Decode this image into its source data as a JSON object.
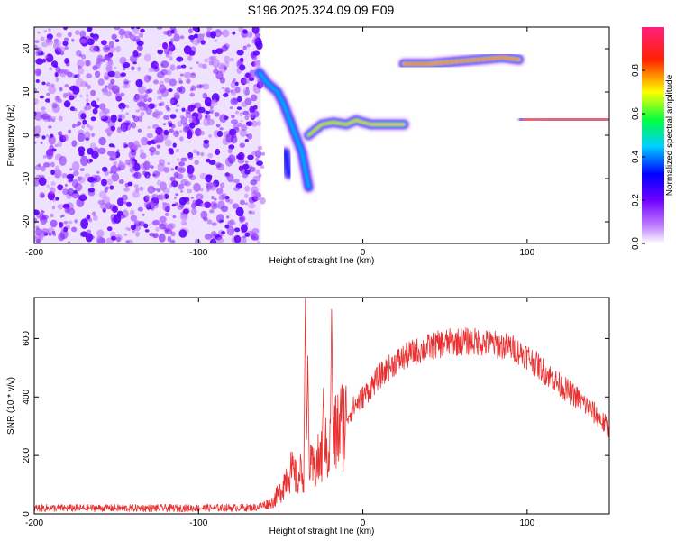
{
  "title": "S196.2025.324.09.09.E09",
  "colors": {
    "snr_line": "#e83030",
    "axes": "#000000",
    "background": "#ffffff"
  },
  "chart_data": [
    {
      "type": "heatmap",
      "name": "spectrogram",
      "xlabel": "Height of straight line (km)",
      "ylabel": "Frequency (Hz)",
      "xlim": [
        -200,
        150
      ],
      "ylim": [
        -25,
        25
      ],
      "xticks": [
        -200,
        -100,
        0,
        100
      ],
      "yticks": [
        -20,
        -10,
        0,
        10,
        20
      ],
      "colorbar": {
        "label": "Normalized spectral amplitude",
        "range": [
          0,
          1
        ],
        "ticks": [
          "0.0",
          "0.2",
          "0.4",
          "0.6",
          "0.8"
        ],
        "colormap": "rainbow (white-violet-blue-cyan-green-yellow-red-magenta)"
      },
      "noise_region": {
        "x": [
          -200,
          -62
        ],
        "y": [
          -25,
          25
        ],
        "amplitude": [
          0.1,
          0.3
        ]
      },
      "traces": [
        {
          "name": "descending-branch-a",
          "x": [
            -63,
            -58,
            -52,
            -48,
            -44,
            -40,
            -37,
            -35,
            -33
          ],
          "y": [
            14.5,
            12,
            10,
            7,
            3,
            -1,
            -4,
            -8,
            -12
          ],
          "amplitude": 0.45
        },
        {
          "name": "descending-branch-b",
          "x": [
            -47,
            -46,
            -45
          ],
          "y": [
            -4,
            -7,
            -9
          ],
          "amplitude": 0.3
        },
        {
          "name": "low-band",
          "x": [
            -33,
            -25,
            -18,
            -10,
            -4,
            0,
            5,
            15,
            25
          ],
          "y": [
            0,
            2.5,
            3,
            2.5,
            3.5,
            3,
            2.5,
            2.5,
            2.5
          ],
          "amplitude": 0.75
        },
        {
          "name": "upper-band",
          "x": [
            25,
            40,
            55,
            70,
            85,
            95
          ],
          "y": [
            16.5,
            16.5,
            17,
            17.5,
            18,
            17.5
          ],
          "amplitude": 0.85
        },
        {
          "name": "right-band",
          "x": [
            98,
            110,
            125,
            140,
            150
          ],
          "y": [
            3.5,
            3.8,
            3.8,
            3.8,
            3.8
          ],
          "amplitude": 0.95
        }
      ]
    },
    {
      "type": "line",
      "name": "snr",
      "xlabel": "Height of straight line (km)",
      "ylabel": "SNR (10 * v/v)",
      "xlim": [
        -200,
        150
      ],
      "ylim": [
        0,
        740
      ],
      "xticks": [
        -200,
        -100,
        0,
        100
      ],
      "yticks": [
        0,
        200,
        400,
        600
      ],
      "envelope": {
        "x": [
          -200,
          -150,
          -100,
          -65,
          -55,
          -50,
          -45,
          -40,
          -35,
          -30,
          -25,
          -20,
          -15,
          -10,
          -5,
          0,
          10,
          20,
          30,
          40,
          50,
          60,
          70,
          80,
          90,
          100,
          110,
          120,
          130,
          140,
          150
        ],
        "y": [
          20,
          20,
          20,
          22,
          40,
          80,
          150,
          120,
          160,
          150,
          200,
          230,
          290,
          330,
          370,
          400,
          470,
          520,
          550,
          570,
          585,
          590,
          588,
          580,
          570,
          540,
          490,
          440,
          400,
          350,
          290
        ]
      },
      "spikes": [
        {
          "x": -35,
          "y": 740
        },
        {
          "x": -33.5,
          "y": 540
        },
        {
          "x": -19,
          "y": 700
        },
        {
          "x": -24,
          "y": 430
        }
      ]
    }
  ]
}
